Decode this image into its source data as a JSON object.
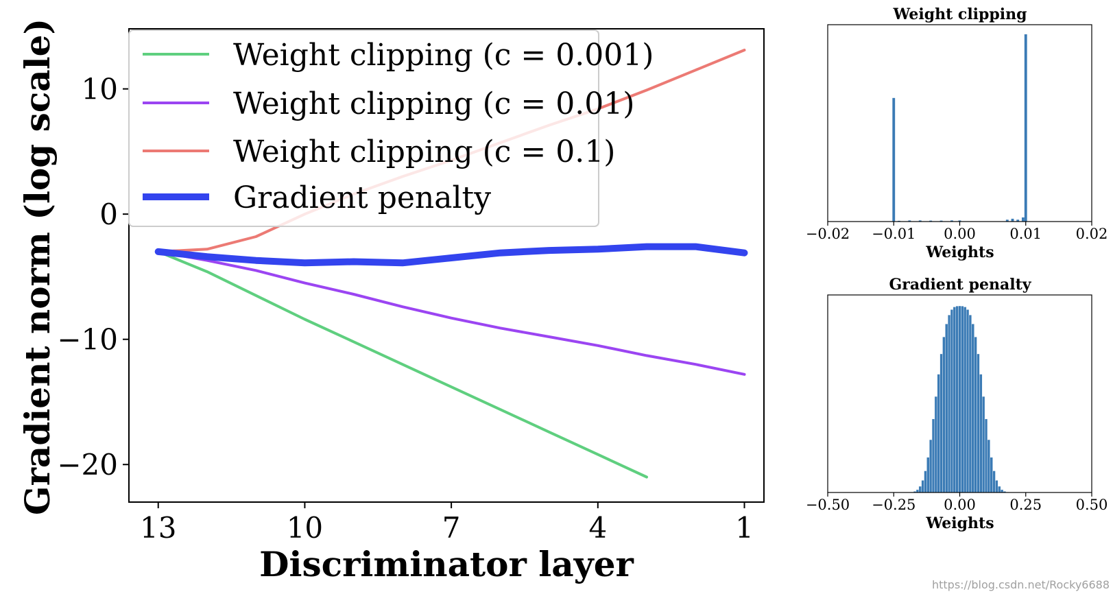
{
  "chart_data": [
    {
      "type": "line",
      "xlabel": "Discriminator layer",
      "ylabel": "Gradient norm (log scale)",
      "xlim": [
        13.6,
        0.6
      ],
      "ylim": [
        -23,
        14.8
      ],
      "xticks": [
        13,
        10,
        7,
        4,
        1
      ],
      "yticks": [
        10,
        0,
        -10,
        -20
      ],
      "ytick_labels": [
        "10",
        "0",
        "−10",
        "−20"
      ],
      "legend_position": "upper-left",
      "series": [
        {
          "name": "Weight clipping (c = 0.001)",
          "color": "#5fcf7f",
          "width": 4,
          "x": [
            13,
            12,
            11,
            10,
            9,
            8,
            7,
            6,
            5,
            4,
            3
          ],
          "y": [
            -3,
            -4.6,
            -6.5,
            -8.4,
            -10.2,
            -12.0,
            -13.8,
            -15.6,
            -17.4,
            -19.2,
            -21.0
          ]
        },
        {
          "name": "Weight clipping (c = 0.01)",
          "color": "#9b45f2",
          "width": 4,
          "x": [
            13,
            12,
            11,
            10,
            9,
            8,
            7,
            6,
            5,
            4,
            3,
            2,
            1
          ],
          "y": [
            -3,
            -3.7,
            -4.5,
            -5.5,
            -6.4,
            -7.4,
            -8.3,
            -9.1,
            -9.8,
            -10.5,
            -11.3,
            -12.0,
            -12.8
          ]
        },
        {
          "name": "Weight clipping (c = 0.1)",
          "color": "#ec7a74",
          "width": 4,
          "x": [
            13,
            12,
            11,
            10,
            9,
            8,
            7,
            6,
            5,
            4,
            3,
            2,
            1
          ],
          "y": [
            -3,
            -2.8,
            -1.8,
            0.0,
            1.6,
            3.0,
            4.3,
            5.7,
            7.1,
            8.4,
            9.9,
            11.5,
            13.1
          ]
        },
        {
          "name": "Gradient penalty",
          "color": "#3344ee",
          "width": 10,
          "x": [
            13,
            12,
            11,
            10,
            9,
            8,
            7,
            6,
            5,
            4,
            3,
            2,
            1
          ],
          "y": [
            -3,
            -3.4,
            -3.7,
            -3.9,
            -3.8,
            -3.9,
            -3.5,
            -3.1,
            -2.9,
            -2.8,
            -2.6,
            -2.6,
            -3.1
          ]
        }
      ]
    },
    {
      "type": "bar",
      "title": "Weight clipping",
      "xlabel": "Weights",
      "xlim": [
        -0.02,
        0.02
      ],
      "xticks": [
        -0.02,
        -0.01,
        0.0,
        0.01,
        0.02
      ],
      "xtick_labels": [
        "−0.02",
        "−0.01",
        "0.00",
        "0.01",
        "0.02"
      ],
      "color": "#3b7bb5",
      "bin_width": 0.0004,
      "bins": [
        {
          "x": -0.01,
          "v": 0.66
        },
        {
          "x": -0.0092,
          "v": 0.004
        },
        {
          "x": -0.0076,
          "v": 0.006
        },
        {
          "x": -0.006,
          "v": 0.006
        },
        {
          "x": -0.0044,
          "v": 0.005
        },
        {
          "x": -0.0028,
          "v": 0.005
        },
        {
          "x": -0.0012,
          "v": 0.006
        },
        {
          "x": 0.0,
          "v": 0.006
        },
        {
          "x": 0.0072,
          "v": 0.01
        },
        {
          "x": 0.008,
          "v": 0.015
        },
        {
          "x": 0.0088,
          "v": 0.01
        },
        {
          "x": 0.0096,
          "v": 0.022
        },
        {
          "x": 0.01,
          "v": 1.0
        }
      ]
    },
    {
      "type": "bar",
      "title": "Gradient penalty",
      "xlabel": "Weights",
      "xlim": [
        -0.5,
        0.5
      ],
      "xticks": [
        -0.5,
        -0.25,
        0.0,
        0.25,
        0.5
      ],
      "xtick_labels": [
        "−0.50",
        "−0.25",
        "0.00",
        "0.25",
        "0.50"
      ],
      "color": "#3b7bb5",
      "bin_width": 0.01,
      "sigma": 0.06,
      "bin_range": [
        -0.24,
        0.24
      ],
      "peak": 1.0
    }
  ],
  "watermark": "https://blog.csdn.net/Rocky6688"
}
